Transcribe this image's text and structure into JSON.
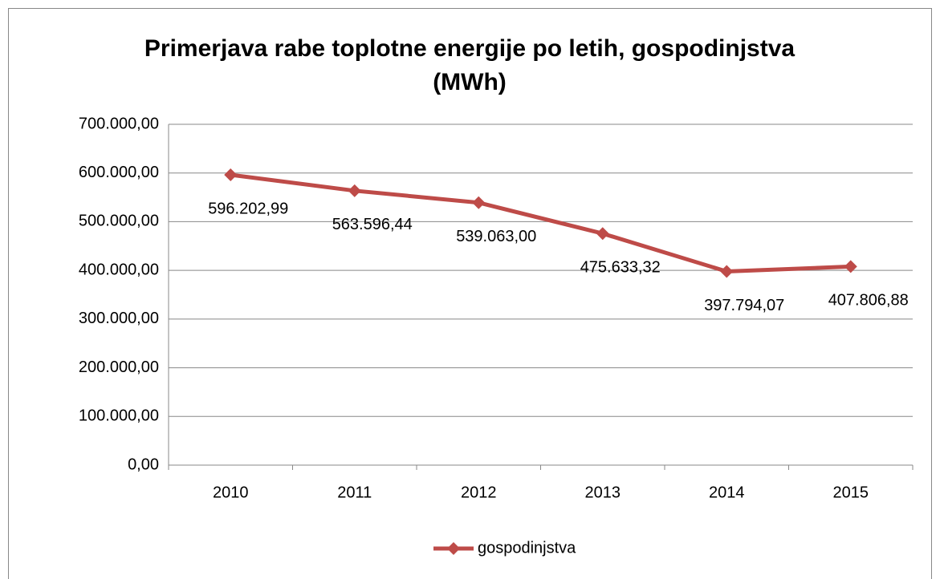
{
  "chart_data": {
    "type": "line",
    "title": "Primerjava rabe toplotne energije po letih, gospodinjstva (MWh)",
    "categories": [
      "2010",
      "2011",
      "2012",
      "2013",
      "2014",
      "2015"
    ],
    "series": [
      {
        "name": "gospodinjstva",
        "color": "#be4b48",
        "values": [
          596202.99,
          563596.44,
          539063.0,
          475633.32,
          397794.07,
          407806.88
        ],
        "value_labels": [
          "596.202,99",
          "563.596,44",
          "539.063,00",
          "475.633,32",
          "397.794,07",
          "407.806,88"
        ]
      }
    ],
    "ylim": [
      0,
      700000
    ],
    "yticks": [
      {
        "value": 0,
        "label": "0,00"
      },
      {
        "value": 100000,
        "label": "100.000,00"
      },
      {
        "value": 200000,
        "label": "200.000,00"
      },
      {
        "value": 300000,
        "label": "300.000,00"
      },
      {
        "value": 400000,
        "label": "400.000,00"
      },
      {
        "value": 500000,
        "label": "500.000,00"
      },
      {
        "value": 600000,
        "label": "600.000,00"
      },
      {
        "value": 700000,
        "label": "700.000,00"
      }
    ],
    "grid": true,
    "legend": "bottom"
  }
}
